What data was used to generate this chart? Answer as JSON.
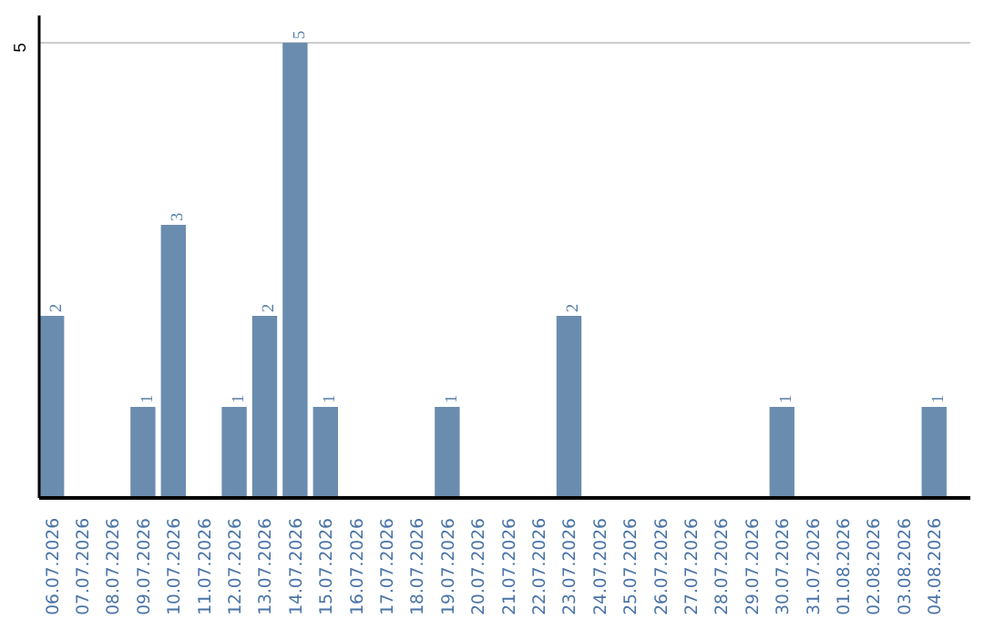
{
  "chart_data": {
    "type": "bar",
    "categories": [
      "06.07.2026",
      "07.07.2026",
      "08.07.2026",
      "09.07.2026",
      "10.07.2026",
      "11.07.2026",
      "12.07.2026",
      "13.07.2026",
      "14.07.2026",
      "15.07.2026",
      "16.07.2026",
      "17.07.2026",
      "18.07.2026",
      "19.07.2026",
      "20.07.2026",
      "21.07.2026",
      "22.07.2026",
      "23.07.2026",
      "24.07.2026",
      "25.07.2026",
      "26.07.2026",
      "27.07.2026",
      "28.07.2026",
      "29.07.2026",
      "30.07.2026",
      "31.07.2026",
      "01.08.2026",
      "02.08.2026",
      "03.08.2026",
      "04.08.2026"
    ],
    "values": [
      2,
      0,
      0,
      1,
      3,
      0,
      1,
      2,
      5,
      1,
      0,
      0,
      0,
      1,
      0,
      0,
      0,
      2,
      0,
      0,
      0,
      0,
      0,
      0,
      1,
      0,
      0,
      0,
      0,
      1
    ],
    "value_labels": [
      "2",
      null,
      null,
      "1",
      "3",
      null,
      "1",
      "2",
      "5",
      "1",
      null,
      null,
      null,
      "1",
      null,
      null,
      null,
      "2",
      null,
      null,
      null,
      null,
      null,
      null,
      "1",
      null,
      null,
      null,
      null,
      "1"
    ],
    "color": "#6a8caf",
    "ylim": [
      0,
      5.3
    ],
    "yticks": [
      5
    ],
    "grid": "y"
  }
}
